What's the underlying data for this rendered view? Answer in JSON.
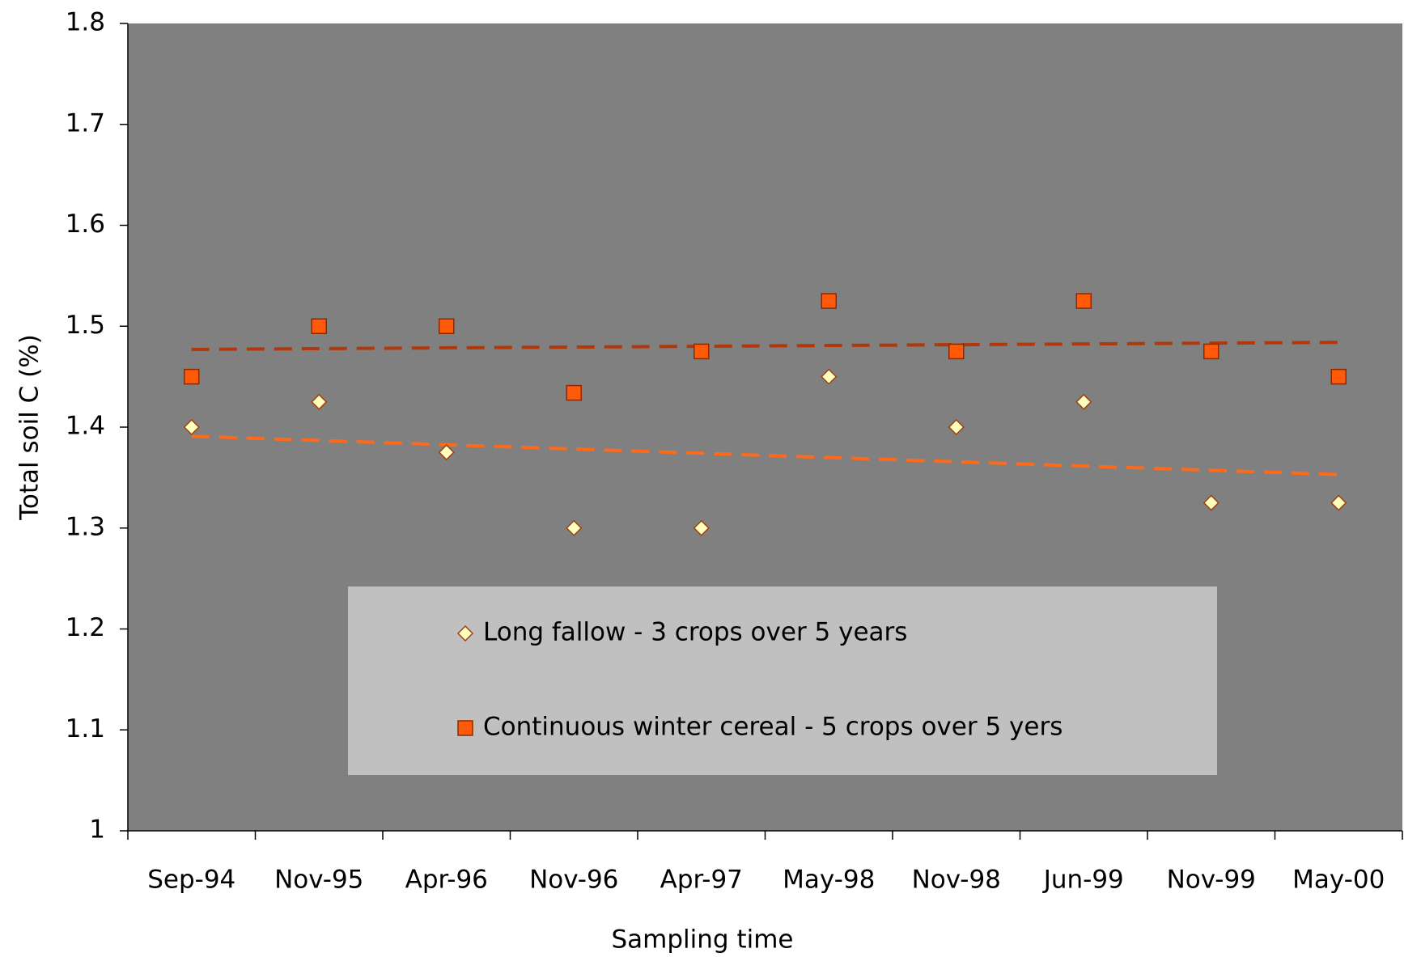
{
  "chart_data": {
    "type": "scatter",
    "x_label": "Sampling time",
    "y_label": "Total soil C (%)",
    "categories": [
      "Sep-94",
      "Nov-95",
      "Apr-96",
      "Nov-96",
      "Apr-97",
      "May-98",
      "Nov-98",
      "Jun-99",
      "Nov-99",
      "May-00"
    ],
    "ylim": [
      1,
      1.8
    ],
    "yticks": [
      1,
      1.1,
      1.2,
      1.3,
      1.4,
      1.5,
      1.6,
      1.7,
      1.8
    ],
    "plot_background": "#808080",
    "legend_background": "#c0c0c0",
    "series": [
      {
        "name": "Long fallow - 3 crops over 5 years",
        "marker": "diamond",
        "color": "#ffffc0",
        "edge_color": "#a0400a",
        "values": [
          1.4,
          1.425,
          1.375,
          1.3,
          1.3,
          1.45,
          1.4,
          1.425,
          1.325,
          1.325
        ],
        "trend": [
          1.391,
          1.353
        ],
        "trend_color": "#ff6a1a"
      },
      {
        "name": "Continuous winter cereal - 5 crops over 5 yers",
        "marker": "square",
        "color": "#ff5a0a",
        "edge_color": "#8a2a00",
        "values": [
          1.45,
          1.5,
          1.5,
          1.434,
          1.475,
          1.525,
          1.475,
          1.525,
          1.475,
          1.45
        ],
        "trend": [
          1.477,
          1.484
        ],
        "trend_color": "#b0380a"
      }
    ]
  }
}
